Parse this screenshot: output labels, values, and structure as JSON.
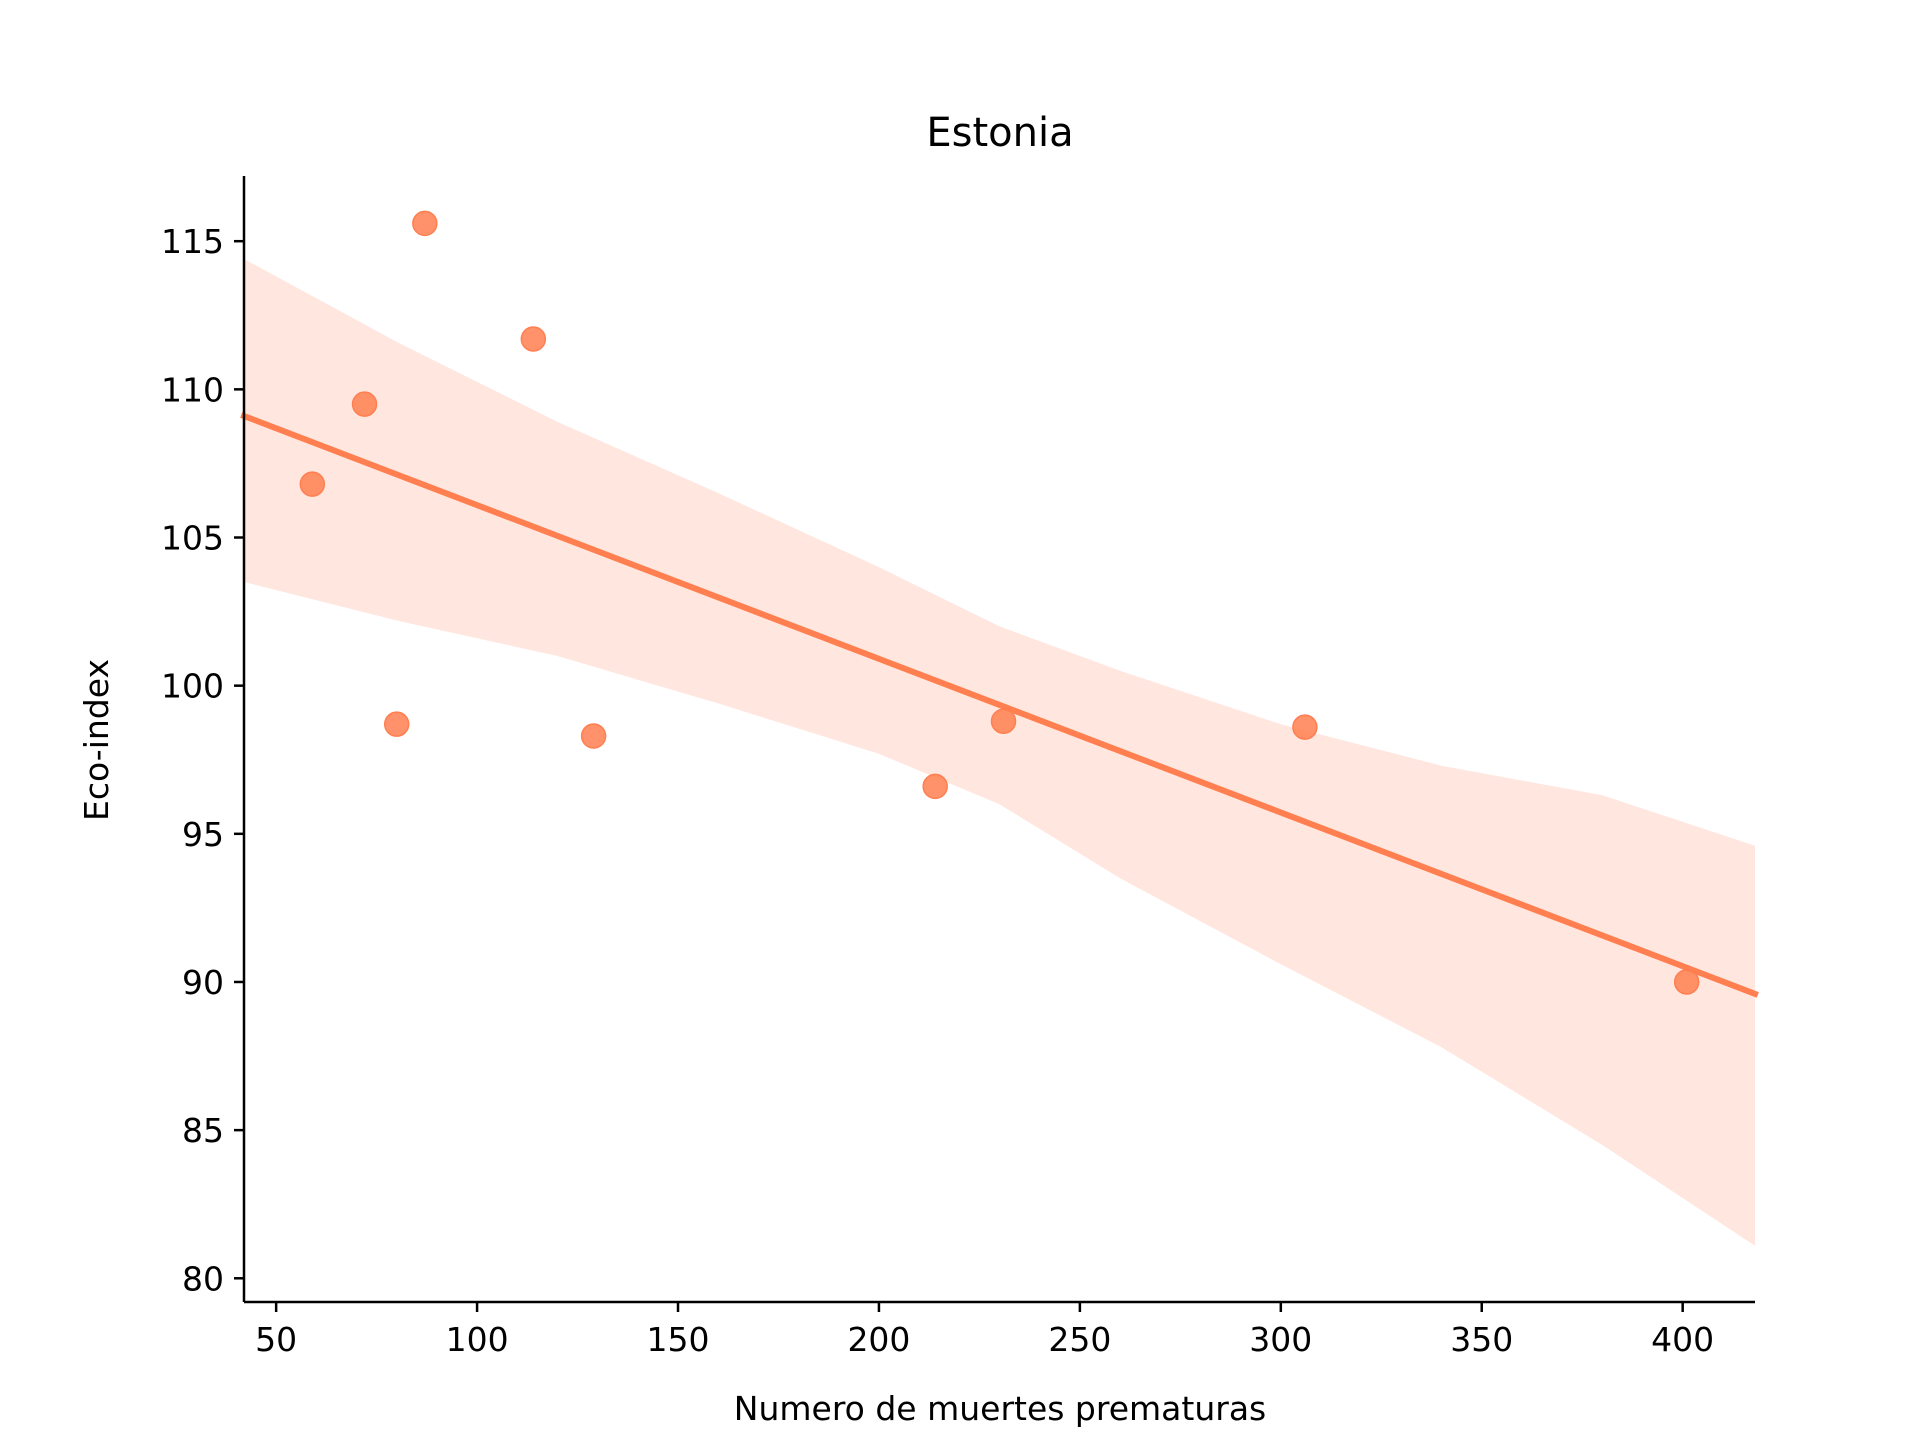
{
  "chart_data": {
    "type": "scatter",
    "title": "Estonia",
    "xlabel": "Numero de muertes prematuras",
    "ylabel": "Eco-index",
    "xlim": [
      42,
      418
    ],
    "ylim": [
      79.2,
      117.2
    ],
    "xticks": [
      50,
      100,
      150,
      200,
      250,
      300,
      350,
      400
    ],
    "yticks": [
      80,
      85,
      90,
      95,
      100,
      105,
      110,
      115
    ],
    "grid": false,
    "legend": "none",
    "colors": {
      "points": "#ff7f50",
      "line": "#ff7f50",
      "band": "#ffe6de"
    },
    "points": [
      {
        "x": 59,
        "y": 106.8
      },
      {
        "x": 72,
        "y": 109.5
      },
      {
        "x": 80,
        "y": 98.7
      },
      {
        "x": 87,
        "y": 115.6
      },
      {
        "x": 114,
        "y": 111.7
      },
      {
        "x": 129,
        "y": 98.3
      },
      {
        "x": 214,
        "y": 96.6
      },
      {
        "x": 231,
        "y": 98.8
      },
      {
        "x": 306,
        "y": 98.6
      },
      {
        "x": 401,
        "y": 90.0
      }
    ],
    "regression_line": {
      "x": [
        42,
        418
      ],
      "y": [
        109.1,
        89.6
      ]
    },
    "confidence_band": {
      "x": [
        42,
        80,
        120,
        160,
        200,
        230,
        260,
        300,
        340,
        380,
        418
      ],
      "upper": [
        114.4,
        111.6,
        108.9,
        106.5,
        104.0,
        102.0,
        100.5,
        98.7,
        97.3,
        96.3,
        94.6
      ],
      "lower": [
        103.5,
        102.2,
        101.0,
        99.4,
        97.7,
        96.0,
        93.5,
        90.6,
        87.8,
        84.5,
        81.1
      ]
    }
  }
}
